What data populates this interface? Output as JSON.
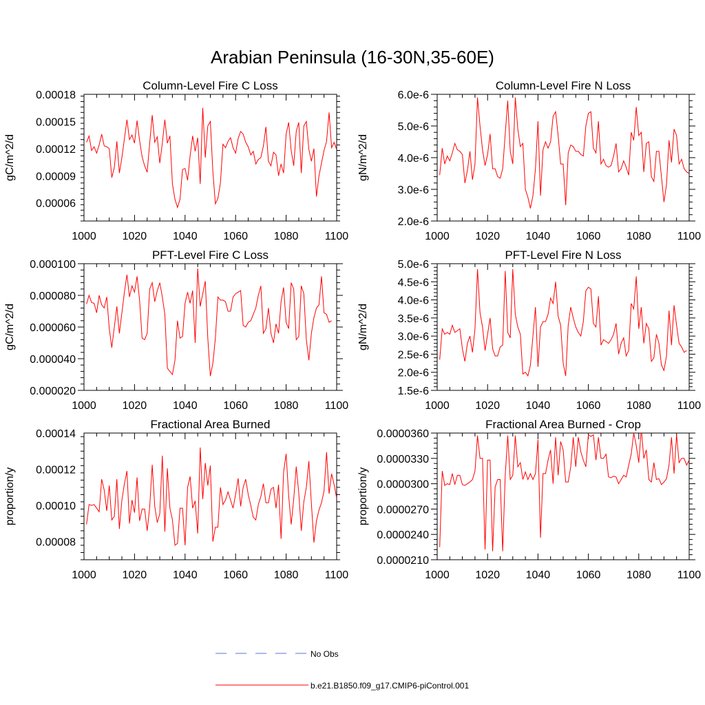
{
  "figure_title": "Arabian Peninsula (16-30N,35-60E)",
  "colors": {
    "series": "#ff0000",
    "obs": "#5a6fd6",
    "axis": "#000000"
  },
  "legend": [
    {
      "label": "No Obs",
      "style": "dashed",
      "color": "#5a6fd6"
    },
    {
      "label": "b.e21.B1850.f09_g17.CMIP6-piControl.001",
      "style": "solid",
      "color": "#ff0000"
    }
  ],
  "chart_data": [
    {
      "type": "line",
      "title": "Column-Level Fire C Loss",
      "xlabel": "",
      "ylabel": "gC/m^2/d",
      "xlim": [
        1000,
        1100
      ],
      "ylim": [
        4e-05,
        0.00018
      ],
      "xticks": [
        1000,
        1020,
        1040,
        1060,
        1080,
        1100
      ],
      "yticks": [
        6e-05,
        9e-05,
        0.00012,
        0.00015,
        0.00018
      ],
      "yticklabels": [
        "0.00006",
        "0.00009",
        "0.00012",
        "0.00015",
        "0.00018"
      ],
      "x_start": 1001,
      "series": [
        {
          "name": "b.e21.B1850.f09_g17.CMIP6-piControl.001",
          "values": [
            0.000127,
            0.000134,
            0.000118,
            0.000122,
            0.000115,
            0.000124,
            0.000136,
            0.000123,
            0.000122,
            0.00012,
            8.8e-05,
            9.9e-05,
            0.000128,
            9.3e-05,
            0.00011,
            0.000131,
            0.000152,
            0.00013,
            0.000135,
            0.000126,
            0.000151,
            0.000129,
            0.000111,
            0.000101,
            9.4e-05,
            0.000126,
            0.000157,
            0.000127,
            0.000133,
            0.000104,
            0.000126,
            0.000152,
            0.000126,
            0.000134,
            8.1e-05,
            6.4e-05,
            5.5e-05,
            6.4e-05,
            9.7e-05,
            9.8e-05,
            8.5e-05,
            0.000112,
            0.000134,
            0.000117,
            0.000132,
            8.1e-05,
            0.000165,
            0.00011,
            0.000145,
            0.00015,
            9.5e-05,
            5.9e-05,
            6.5e-05,
            8.2e-05,
            0.000125,
            0.000121,
            0.000128,
            0.000132,
            0.000121,
            0.000115,
            0.000131,
            0.000139,
            0.000136,
            0.000127,
            0.000122,
            0.000113,
            0.000117,
            0.000103,
            0.000108,
            0.00011,
            0.000123,
            0.000144,
            0.000106,
            0.000101,
            0.000116,
            0.000113,
            9e-05,
            0.000103,
            9.3e-05,
            0.000136,
            0.000149,
            0.000118,
            0.000101,
            0.000139,
            0.000149,
            9.3e-05,
            0.000145,
            0.00015,
            0.000119,
            0.000106,
            0.00012,
            6.7e-05,
            9e-05,
            0.000104,
            0.000118,
            0.000128,
            0.00016,
            0.000121,
            0.000127,
            0.000119,
            0.000108
          ]
        }
      ]
    },
    {
      "type": "line",
      "title": "Column-Level Fire N Loss",
      "xlabel": "",
      "ylabel": "gN/m^2/d",
      "xlim": [
        1000,
        1100
      ],
      "ylim": [
        2e-06,
        6e-06
      ],
      "xticks": [
        1000,
        1020,
        1040,
        1060,
        1080,
        1100
      ],
      "yticks": [
        2e-06,
        3e-06,
        4e-06,
        5e-06,
        6e-06
      ],
      "yticklabels": [
        "2.0e-6",
        "3.0e-6",
        "4.0e-6",
        "5.0e-6",
        "6.0e-6"
      ],
      "x_start": 1001,
      "series": [
        {
          "name": "b.e21.B1850.f09_g17.CMIP6-piControl.001",
          "values": [
            3.45e-06,
            4.3e-06,
            3.8e-06,
            4.05e-06,
            3.9e-06,
            4.15e-06,
            4.45e-06,
            4.25e-06,
            4.2e-06,
            4.1e-06,
            3.2e-06,
            3.6e-06,
            4.2e-06,
            3.3e-06,
            3.8e-06,
            5.9e-06,
            5e-06,
            4.25e-06,
            3.75e-06,
            4.1e-06,
            4.75e-06,
            3.65e-06,
            3.65e-06,
            3.4e-06,
            3.35e-06,
            3.65e-06,
            4.75e-06,
            5.8e-06,
            4.2e-06,
            3.8e-06,
            5.9e-06,
            4.9e-06,
            4.35e-06,
            4.45e-06,
            3e-06,
            2.75e-06,
            2.4e-06,
            2.8e-06,
            3.65e-06,
            5.15e-06,
            2.8e-06,
            4.25e-06,
            4.5e-06,
            4.3e-06,
            4.5e-06,
            5.3e-06,
            5.45e-06,
            4.7e-06,
            3.8e-06,
            3.8e-06,
            2.5e-06,
            4.15e-06,
            4.4e-06,
            4.35e-06,
            4.2e-06,
            4.2e-06,
            4.1e-06,
            4.05e-06,
            5e-06,
            5.4e-06,
            5.45e-06,
            4.3e-06,
            4.15e-06,
            5.15e-06,
            3.8e-06,
            3.95e-06,
            3.75e-06,
            3.7e-06,
            3.75e-06,
            4.05e-06,
            4.45e-06,
            3.55e-06,
            3.65e-06,
            3.9e-06,
            3.7e-06,
            3.45e-06,
            4.8e-06,
            4.55e-06,
            5.6e-06,
            4.7e-06,
            4.8e-06,
            3.55e-06,
            4.45e-06,
            4.5e-06,
            3.4e-06,
            3.25e-06,
            4.2e-06,
            4.2e-06,
            3.4e-06,
            2.6e-06,
            3.15e-06,
            4.55e-06,
            3.85e-06,
            4.9e-06,
            4.7e-06,
            3.8e-06,
            3.95e-06,
            3.65e-06,
            3.55e-06,
            3.5e-06
          ]
        }
      ]
    },
    {
      "type": "line",
      "title": "PFT-Level Fire C Loss",
      "xlabel": "",
      "ylabel": "gC/m^2/d",
      "xlim": [
        1000,
        1100
      ],
      "ylim": [
        2e-05,
        0.0001
      ],
      "xticks": [
        1000,
        1020,
        1040,
        1060,
        1080,
        1100
      ],
      "yticks": [
        2e-05,
        4e-05,
        6e-05,
        8e-05,
        0.0001
      ],
      "yticklabels": [
        "0.000020",
        "0.000040",
        "0.000060",
        "0.000080",
        "0.000100"
      ],
      "x_start": 1001,
      "series": [
        {
          "name": "b.e21.B1850.f09_g17.CMIP6-piControl.001",
          "values": [
            7.45e-05,
            8e-05,
            7.55e-05,
            7.5e-05,
            6.9e-05,
            8e-05,
            7.4e-05,
            7.2e-05,
            7.9e-05,
            5.9e-05,
            4.7e-05,
            6e-05,
            7.3e-05,
            5.6e-05,
            6.9e-05,
            8.2e-05,
            9.3e-05,
            7.9e-05,
            8.6e-05,
            8.2e-05,
            9.2e-05,
            7.7e-05,
            5.3e-05,
            5.2e-05,
            5.6e-05,
            8.4e-05,
            8.8e-05,
            7.6e-05,
            8.3e-05,
            8.8e-05,
            7.9e-05,
            6.8e-05,
            3.4e-05,
            3.2e-05,
            3e-05,
            3.9e-05,
            6.4e-05,
            5.3e-05,
            5.4e-05,
            7.5e-05,
            8.2e-05,
            7.5e-05,
            8.3e-05,
            5e-05,
            9.7e-05,
            7.3e-05,
            8.1e-05,
            8.9e-05,
            5.3e-05,
            2.9e-05,
            3.7e-05,
            5.3e-05,
            7.9e-05,
            7.7e-05,
            7.7e-05,
            7.6e-05,
            7e-05,
            7e-05,
            7.9e-05,
            8.1e-05,
            8.2e-05,
            8.3e-05,
            6.1e-05,
            6e-05,
            6.3e-05,
            6.4e-05,
            6.8e-05,
            7.2e-05,
            8e-05,
            8.6e-05,
            5.6e-05,
            5.9e-05,
            7.2e-05,
            5.6e-05,
            5e-05,
            6.2e-05,
            5.6e-05,
            7.6e-05,
            8.5e-05,
            6.3e-05,
            5.9e-05,
            8.8e-05,
            8.4e-05,
            5.2e-05,
            5.4e-05,
            8.6e-05,
            8.1e-05,
            5.2e-05,
            3.9e-05,
            5.6e-05,
            6.6e-05,
            7.2e-05,
            7.4e-05,
            9.2e-05,
            6.9e-05,
            6.8e-05,
            6.3e-05,
            6.4e-05
          ]
        }
      ]
    },
    {
      "type": "line",
      "title": "PFT-Level Fire N Loss",
      "xlabel": "",
      "ylabel": "gN/m^2/d",
      "xlim": [
        1000,
        1100
      ],
      "ylim": [
        1.5e-06,
        5e-06
      ],
      "xticks": [
        1000,
        1020,
        1040,
        1060,
        1080,
        1100
      ],
      "yticks": [
        1.5e-06,
        2e-06,
        2.5e-06,
        3e-06,
        3.5e-06,
        4e-06,
        4.5e-06,
        5e-06
      ],
      "yticklabels": [
        "1.5e-6",
        "2.0e-6",
        "2.5e-6",
        "3.0e-6",
        "3.5e-6",
        "4.0e-6",
        "4.5e-6",
        "5.0e-6"
      ],
      "x_start": 1001,
      "series": [
        {
          "name": "b.e21.B1850.f09_g17.CMIP6-piControl.001",
          "values": [
            2.35e-06,
            3.2e-06,
            3.05e-06,
            3.1e-06,
            3.05e-06,
            3.3e-06,
            3.1e-06,
            3.15e-06,
            3.2e-06,
            2.65e-06,
            2.3e-06,
            2.8e-06,
            3e-06,
            2.55e-06,
            3.2e-06,
            4.85e-06,
            3.65e-06,
            3.25e-06,
            2.6e-06,
            3.05e-06,
            3.5e-06,
            2.65e-06,
            2.45e-06,
            2.45e-06,
            2.7e-06,
            2.75e-06,
            4.8e-06,
            3.1e-06,
            2.95e-06,
            4.85e-06,
            3.6e-06,
            3.25e-06,
            3.05e-06,
            1.95e-06,
            2e-06,
            1.9e-06,
            2.2e-06,
            3e-06,
            3.8e-06,
            2.15e-06,
            3.25e-06,
            3.4e-06,
            3.4e-06,
            3.6e-06,
            4.05e-06,
            3.9e-06,
            4.5e-06,
            3.55e-06,
            3.3e-06,
            2.25e-06,
            1.9e-06,
            3.3e-06,
            3.8e-06,
            3.5e-06,
            3.25e-06,
            3.1e-06,
            3e-06,
            3.4e-06,
            4.25e-06,
            4.35e-06,
            4.3e-06,
            3.35e-06,
            3.25e-06,
            4.1e-06,
            2.75e-06,
            2.9e-06,
            2.85e-06,
            2.8e-06,
            2.9e-06,
            3.05e-06,
            3.35e-06,
            2.5e-06,
            2.8e-06,
            2.95e-06,
            2.45e-06,
            2.6e-06,
            3.9e-06,
            3.75e-06,
            4.65e-06,
            3.2e-06,
            3.8e-06,
            2.8e-06,
            3.35e-06,
            3.2e-06,
            2.3e-06,
            2.4e-06,
            3.05e-06,
            2.8e-06,
            2.2e-06,
            2.05e-06,
            2.45e-06,
            3.7e-06,
            2.75e-06,
            3.85e-06,
            3.3e-06,
            2.8e-06,
            2.7e-06,
            2.55e-06,
            2.6e-06
          ]
        }
      ]
    },
    {
      "type": "line",
      "title": "Fractional Area Burned",
      "xlabel": "",
      "ylabel": "proportion/y",
      "xlim": [
        1000,
        1100
      ],
      "ylim": [
        7e-05,
        0.00014
      ],
      "xticks": [
        1000,
        1020,
        1040,
        1060,
        1080,
        1100
      ],
      "yticks": [
        8e-05,
        0.0001,
        0.00012,
        0.00014
      ],
      "yticklabels": [
        "0.00008",
        "0.00010",
        "0.00012",
        "0.00014"
      ],
      "x_start": 1001,
      "series": [
        {
          "name": "b.e21.B1850.f09_g17.CMIP6-piControl.001",
          "values": [
            8.95e-05,
            0.0001005,
            0.0001,
            0.0001005,
            9.85e-05,
            9.65e-05,
            0.0001145,
            0.0001085,
            9.7e-05,
            0.000111,
            9.2e-05,
            9.4e-05,
            0.0001145,
            8.7e-05,
            0.000103,
            0.000112,
            0.000119,
            9e-05,
            0.000103,
            9.6e-05,
            0.0001155,
            9.15e-05,
            9.8e-05,
            9.8e-05,
            8.6e-05,
            9.9e-05,
            0.0001225,
            9.95e-05,
            9.05e-05,
            9.55e-05,
            0.0001275,
            8.55e-05,
            0.0001205,
            9.85e-05,
            9.2e-05,
            7.8e-05,
            7.9e-05,
            9.85e-05,
            9.85e-05,
            7.8e-05,
            0.00011,
            0.000116,
            9.85e-05,
            0.0001025,
            8.45e-05,
            0.000132,
            0.0001035,
            0.0001235,
            0.000111,
            0.000122,
            8e-05,
            8.8e-05,
            8.8e-05,
            0.00011,
            0.0001005,
            0.000103,
            0.0001075,
            0.000103,
            9.85e-05,
            0.000106,
            0.000115,
            9.95e-05,
            0.00011,
            0.0001145,
            0.000106,
            0.0001,
            9.35e-05,
            9.2e-05,
            0.0001005,
            0.000105,
            0.000112,
            0.0001015,
            0.0001015,
            0.000109,
            0.00011,
            9.85e-05,
            0.0001115,
            8.15e-05,
            0.0001185,
            0.0001285,
            0.0001055,
            8.95e-05,
            0.0001035,
            0.0001215,
            0.000107,
            8.6e-05,
            0.000102,
            0.00011,
            0.0001245,
            0.000101,
            7.95e-05,
            9.15e-05,
            9.75e-05,
            0.0001015,
            0.000108,
            0.0001295,
            0.0001065,
            0.0001175,
            0.0001115,
            0.000104
          ]
        }
      ]
    },
    {
      "type": "line",
      "title": "Fractional Area Burned - Crop",
      "xlabel": "",
      "ylabel": "proportion/y",
      "xlim": [
        1000,
        1100
      ],
      "ylim": [
        2.1e-05,
        3.6e-05
      ],
      "xticks": [
        1000,
        1020,
        1040,
        1060,
        1080,
        1100
      ],
      "yticks": [
        2.1e-05,
        2.4e-05,
        2.7e-05,
        3e-05,
        3.3e-05,
        3.6e-05
      ],
      "yticklabels": [
        "0.0000210",
        "0.0000240",
        "0.0000270",
        "0.0000300",
        "0.0000330",
        "0.0000360"
      ],
      "x_start": 1001,
      "series": [
        {
          "name": "b.e21.B1850.f09_g17.CMIP6-piControl.001",
          "values": [
            2.25e-05,
            3.15e-05,
            2.98e-05,
            3e-05,
            2.99e-05,
            3.12e-05,
            2.99e-05,
            3.1e-05,
            3.1e-05,
            2.99e-05,
            2.98e-05,
            3e-05,
            3.02e-05,
            3.05e-05,
            3.15e-05,
            3.57e-05,
            3.3e-05,
            3.3e-05,
            2.22e-05,
            3.28e-05,
            3.28e-05,
            2.2e-05,
            2.96e-05,
            3.05e-05,
            3.05e-05,
            2.2e-05,
            3.1e-05,
            3.57e-05,
            3.05e-05,
            3.1e-05,
            3.57e-05,
            3.2e-05,
            3.25e-05,
            3.05e-05,
            3.14e-05,
            3.05e-05,
            3.12e-05,
            3.05e-05,
            3.12e-05,
            3.52e-05,
            2.36e-05,
            3.12e-05,
            3.12e-05,
            3.28e-05,
            3.4e-05,
            3e-05,
            3.55e-05,
            3.1e-05,
            3.5e-05,
            3.4e-05,
            3.02e-05,
            3.02e-05,
            3.2e-05,
            3.55e-05,
            3.2e-05,
            3.55e-05,
            3.38e-05,
            3.28e-05,
            3.2e-05,
            3.58e-05,
            3.56e-05,
            3.58e-05,
            3.28e-05,
            3.55e-05,
            3.3e-05,
            3.3e-05,
            3.35e-05,
            3.08e-05,
            3.07e-05,
            3.09e-05,
            3.08e-05,
            3e-05,
            3.05e-05,
            3.1e-05,
            3.08e-05,
            3.22e-05,
            3.35e-05,
            3.6e-05,
            3.45e-05,
            3.25e-05,
            3.65e-05,
            3.3e-05,
            3.4e-05,
            3.05e-05,
            3.02e-05,
            3.25e-05,
            3.05e-05,
            3.06e-05,
            2.99e-05,
            3.02e-05,
            3.06e-05,
            3.22e-05,
            3.55e-05,
            3.12e-05,
            3.58e-05,
            3.25e-05,
            3.3e-05,
            3.3e-05,
            3.22e-05,
            3.28e-05
          ]
        }
      ]
    }
  ]
}
